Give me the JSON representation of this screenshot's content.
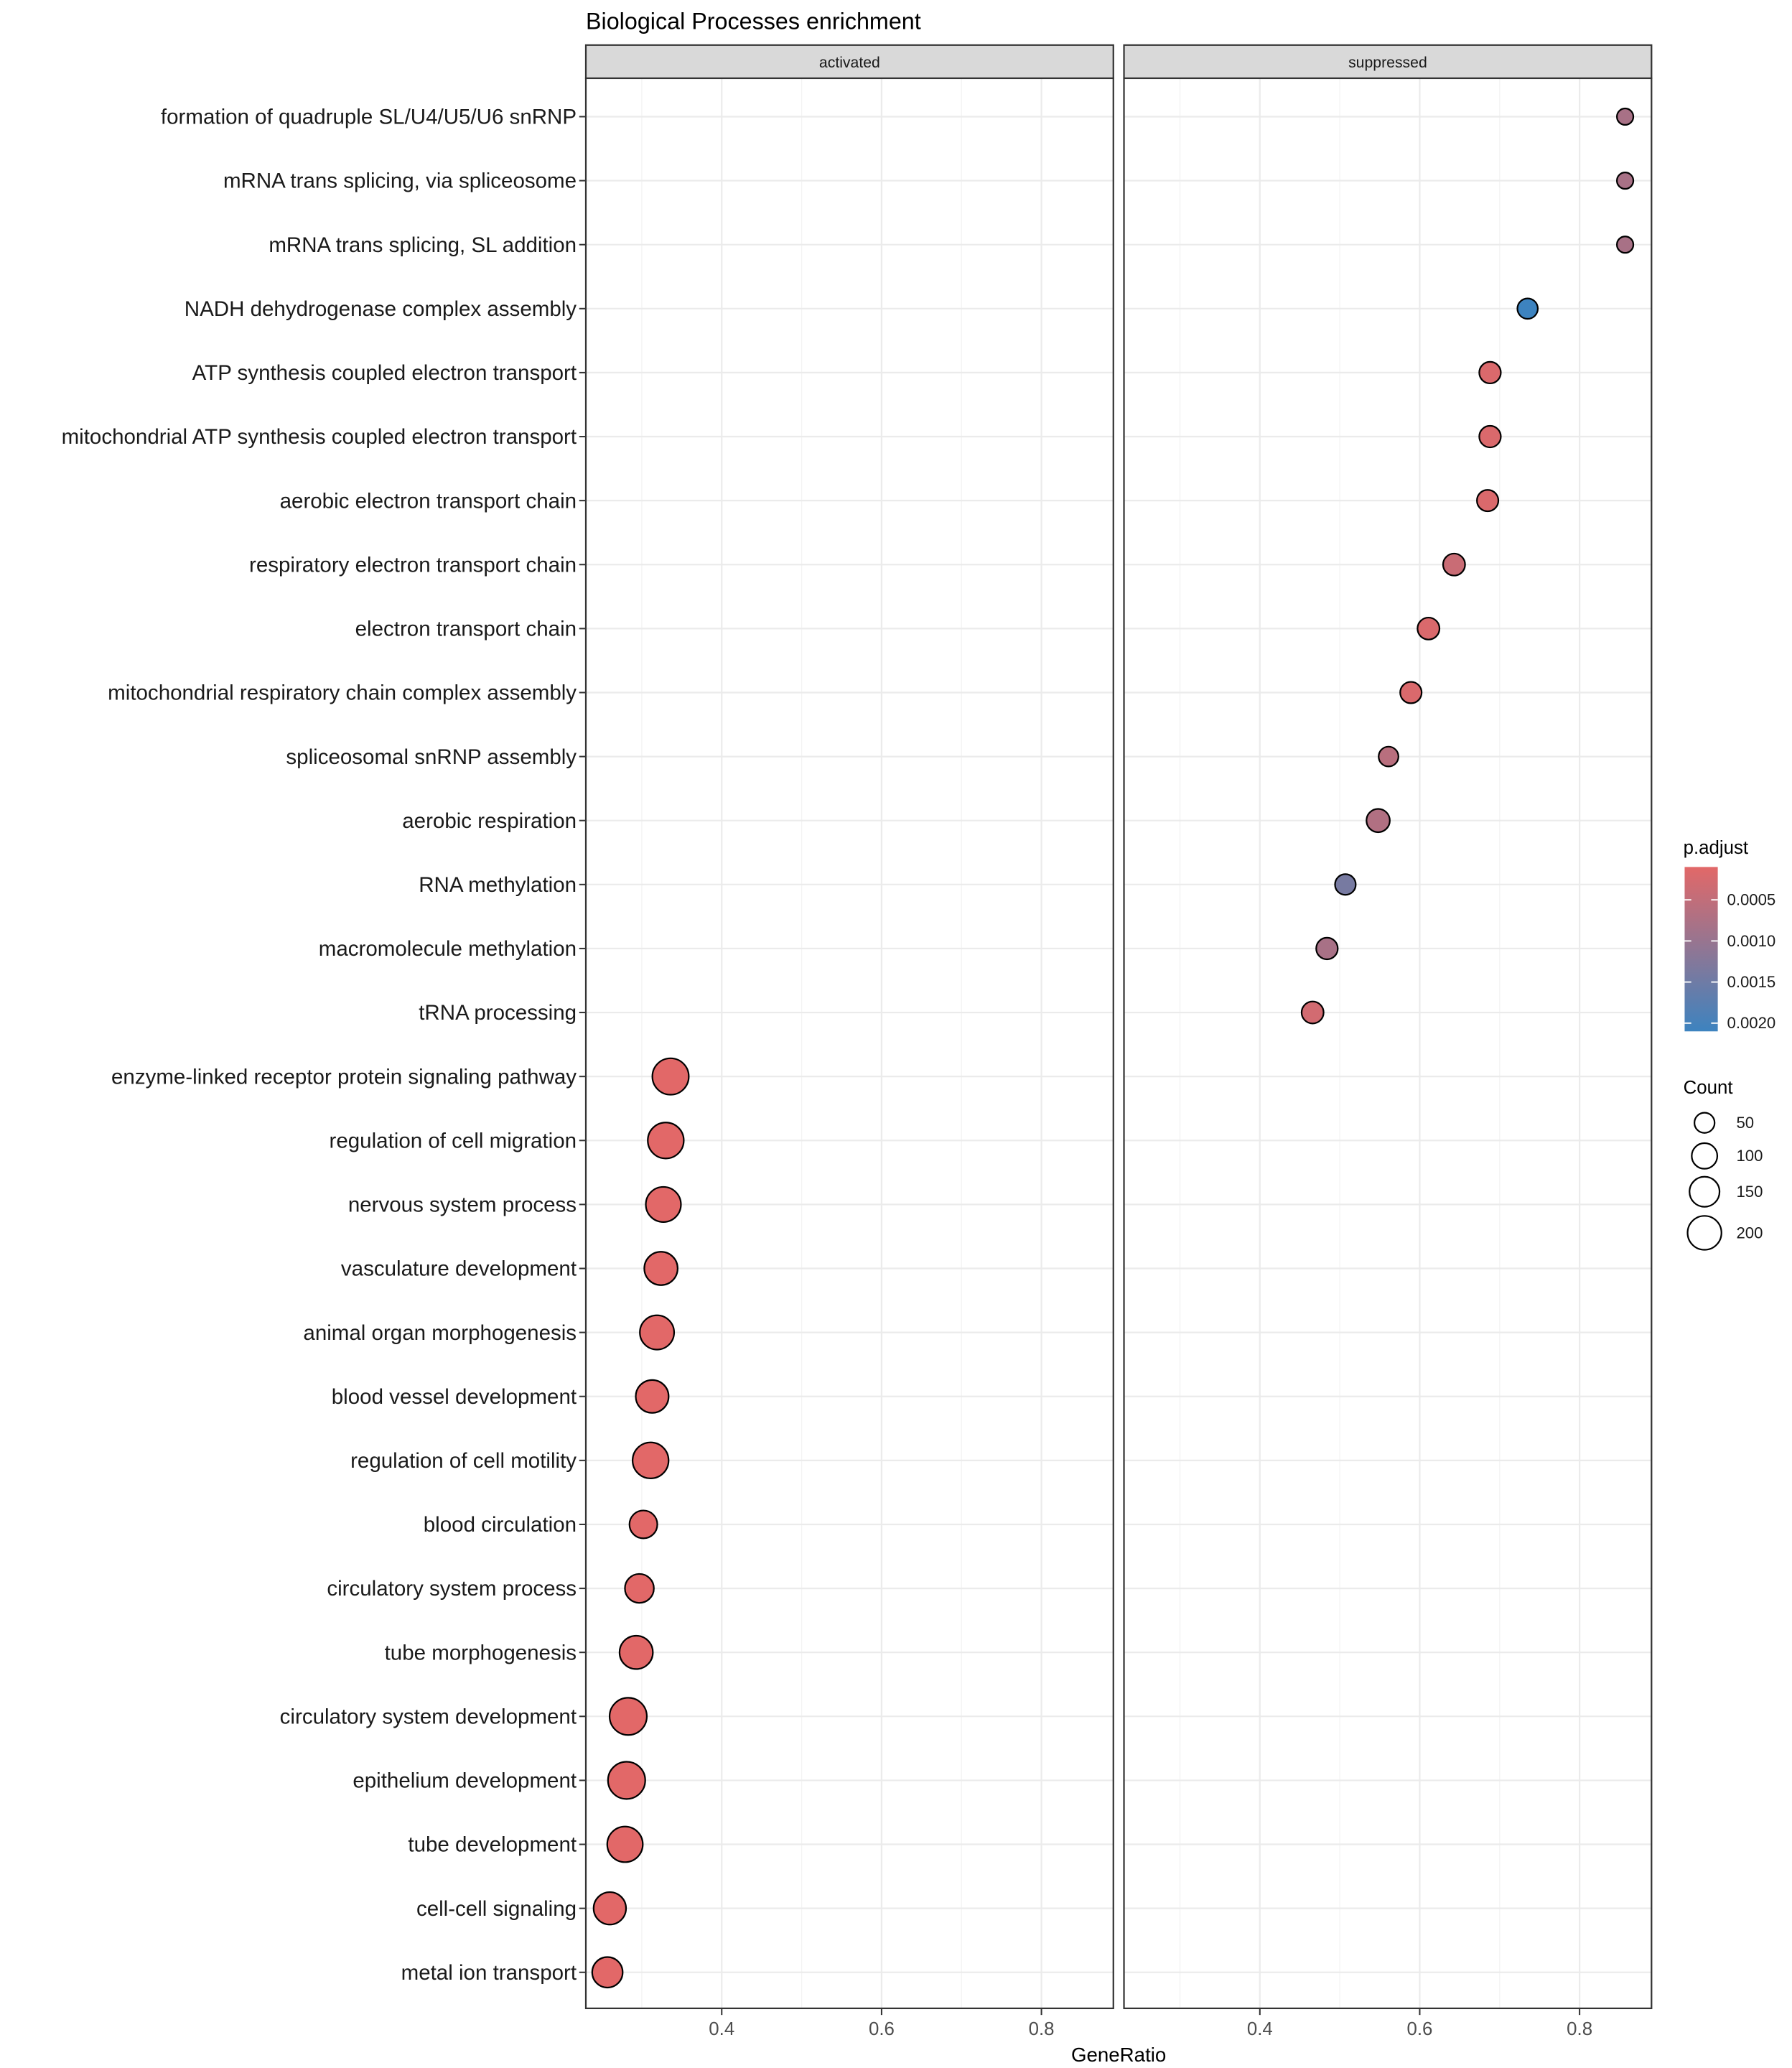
{
  "chart_data": {
    "type": "scatter",
    "title": "Biological Processes enrichment",
    "xlabel": "GeneRatio",
    "ylabel": "",
    "x_ticks": [
      0.4,
      0.6,
      0.8
    ],
    "xlim": [
      0.23,
      0.89
    ],
    "grid": true,
    "facets": [
      "activated",
      "suppressed"
    ],
    "categories": [
      "formation of quadruple SL/U4/U5/U6 snRNP",
      "mRNA trans splicing, via spliceosome",
      "mRNA trans splicing, SL addition",
      "NADH dehydrogenase complex assembly",
      "ATP synthesis coupled electron transport",
      "mitochondrial ATP synthesis coupled electron transport",
      "aerobic electron transport chain",
      "respiratory electron transport chain",
      "electron transport chain",
      "mitochondrial respiratory chain complex assembly",
      "spliceosomal snRNP assembly",
      "aerobic respiration",
      "RNA methylation",
      "macromolecule methylation",
      "tRNA processing",
      "enzyme-linked receptor protein signaling pathway",
      "regulation of cell migration",
      "nervous system process",
      "vasculature development",
      "animal organ morphogenesis",
      "blood vessel development",
      "regulation of cell motility",
      "blood circulation",
      "circulatory system process",
      "tube morphogenesis",
      "circulatory system development",
      "epithelium development",
      "tube development",
      "cell-cell signaling",
      "metal ion transport"
    ],
    "points": [
      {
        "facet": "suppressed",
        "category": "formation of quadruple SL/U4/U5/U6 snRNP",
        "x": 0.857,
        "count": 12,
        "p_adjust": 0.0008
      },
      {
        "facet": "suppressed",
        "category": "mRNA trans splicing, via spliceosome",
        "x": 0.857,
        "count": 12,
        "p_adjust": 0.0008
      },
      {
        "facet": "suppressed",
        "category": "mRNA trans splicing, SL addition",
        "x": 0.857,
        "count": 12,
        "p_adjust": 0.0008
      },
      {
        "facet": "suppressed",
        "category": "NADH dehydrogenase complex assembly",
        "x": 0.735,
        "count": 36,
        "p_adjust": 0.0021
      },
      {
        "facet": "suppressed",
        "category": "ATP synthesis coupled electron transport",
        "x": 0.688,
        "count": 44,
        "p_adjust": 0.0002
      },
      {
        "facet": "suppressed",
        "category": "mitochondrial ATP synthesis coupled electron transport",
        "x": 0.688,
        "count": 44,
        "p_adjust": 0.0002
      },
      {
        "facet": "suppressed",
        "category": "aerobic electron transport chain",
        "x": 0.685,
        "count": 43,
        "p_adjust": 0.0002
      },
      {
        "facet": "suppressed",
        "category": "respiratory electron transport chain",
        "x": 0.643,
        "count": 47,
        "p_adjust": 0.0004
      },
      {
        "facet": "suppressed",
        "category": "electron transport chain",
        "x": 0.611,
        "count": 47,
        "p_adjust": 0.0002
      },
      {
        "facet": "suppressed",
        "category": "mitochondrial respiratory chain complex assembly",
        "x": 0.589,
        "count": 43,
        "p_adjust": 0.0002
      },
      {
        "facet": "suppressed",
        "category": "spliceosomal snRNP assembly",
        "x": 0.561,
        "count": 32,
        "p_adjust": 0.0006
      },
      {
        "facet": "suppressed",
        "category": "aerobic respiration",
        "x": 0.548,
        "count": 57,
        "p_adjust": 0.0007
      },
      {
        "facet": "suppressed",
        "category": "RNA methylation",
        "x": 0.507,
        "count": 38,
        "p_adjust": 0.0014
      },
      {
        "facet": "suppressed",
        "category": "macromolecule methylation",
        "x": 0.484,
        "count": 44,
        "p_adjust": 0.0008
      },
      {
        "facet": "suppressed",
        "category": "tRNA processing",
        "x": 0.466,
        "count": 47,
        "p_adjust": 0.0003
      },
      {
        "facet": "activated",
        "category": "enzyme-linked receptor protein signaling pathway",
        "x": 0.336,
        "count": 185,
        "p_adjust": 0.0001
      },
      {
        "facet": "activated",
        "category": "regulation of cell migration",
        "x": 0.33,
        "count": 180,
        "p_adjust": 0.0001
      },
      {
        "facet": "activated",
        "category": "nervous system process",
        "x": 0.327,
        "count": 170,
        "p_adjust": 0.0001
      },
      {
        "facet": "activated",
        "category": "vasculature development",
        "x": 0.324,
        "count": 150,
        "p_adjust": 0.0001
      },
      {
        "facet": "activated",
        "category": "animal organ morphogenesis",
        "x": 0.319,
        "count": 160,
        "p_adjust": 0.0001
      },
      {
        "facet": "activated",
        "category": "blood vessel development",
        "x": 0.313,
        "count": 145,
        "p_adjust": 0.0001
      },
      {
        "facet": "activated",
        "category": "regulation of cell motility",
        "x": 0.311,
        "count": 180,
        "p_adjust": 0.0001
      },
      {
        "facet": "activated",
        "category": "blood circulation",
        "x": 0.302,
        "count": 95,
        "p_adjust": 0.0001
      },
      {
        "facet": "activated",
        "category": "circulatory system process",
        "x": 0.297,
        "count": 105,
        "p_adjust": 0.0001
      },
      {
        "facet": "activated",
        "category": "tube morphogenesis",
        "x": 0.293,
        "count": 150,
        "p_adjust": 0.0001
      },
      {
        "facet": "activated",
        "category": "circulatory system development",
        "x": 0.283,
        "count": 195,
        "p_adjust": 0.0001
      },
      {
        "facet": "activated",
        "category": "epithelium development",
        "x": 0.281,
        "count": 195,
        "p_adjust": 0.0001
      },
      {
        "facet": "activated",
        "category": "tube development",
        "x": 0.279,
        "count": 175,
        "p_adjust": 0.0001
      },
      {
        "facet": "activated",
        "category": "cell-cell signaling",
        "x": 0.26,
        "count": 140,
        "p_adjust": 0.0001
      },
      {
        "facet": "activated",
        "category": "metal ion transport",
        "x": 0.257,
        "count": 120,
        "p_adjust": 0.0001
      }
    ],
    "color_legend": {
      "title": "p.adjust",
      "min": 0.0001,
      "max": 0.0021,
      "low_color": "#e26868",
      "high_color": "#3d83bf",
      "ticks": [
        {
          "value": 0.0005,
          "label": "0.0005"
        },
        {
          "value": 0.001,
          "label": "0.0010"
        },
        {
          "value": 0.0015,
          "label": "0.0015"
        },
        {
          "value": 0.002,
          "label": "0.0020"
        }
      ]
    },
    "size_legend": {
      "title": "Count",
      "entries": [
        {
          "value": 50,
          "label": "50"
        },
        {
          "value": 100,
          "label": "100"
        },
        {
          "value": 150,
          "label": "150"
        },
        {
          "value": 200,
          "label": "200"
        }
      ],
      "size_range_counts": [
        12,
        200
      ]
    },
    "legend_position": "right",
    "colors": {
      "strip_fill": "#d9d9d9",
      "grid_major": "#ebebeb",
      "grid_minor": "#f4f4f4",
      "panel_border": "#333333"
    }
  }
}
